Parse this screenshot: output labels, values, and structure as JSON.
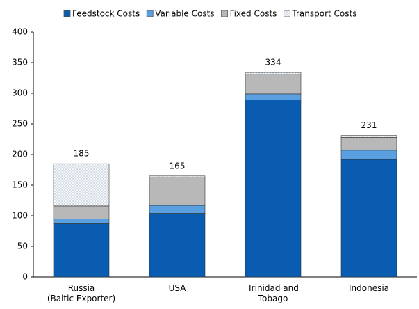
{
  "chart_data": {
    "type": "stacked_bar",
    "categories": [
      "Russia\n(Baltic Exporter)",
      "USA",
      "Trinidad and\nTobago",
      "Indonesia"
    ],
    "series": [
      {
        "name": "Feedstock Costs",
        "color": "#0a5cb0",
        "values": [
          87,
          104,
          289,
          192
        ]
      },
      {
        "name": "Variable Costs",
        "color": "#5aa0e0",
        "values": [
          8,
          13,
          10,
          15
        ]
      },
      {
        "name": "Fixed Costs",
        "color": "#b8b8b8",
        "values": [
          21,
          46,
          32,
          21
        ]
      },
      {
        "name": "Transport Costs",
        "color": "#eef2f6",
        "pattern": "dots",
        "values": [
          69,
          2,
          3,
          3
        ]
      }
    ],
    "totals": [
      185,
      165,
      334,
      231
    ],
    "ylim": [
      0,
      400
    ],
    "yticks": [
      0,
      50,
      100,
      150,
      200,
      250,
      300,
      350,
      400
    ],
    "grid": false
  }
}
